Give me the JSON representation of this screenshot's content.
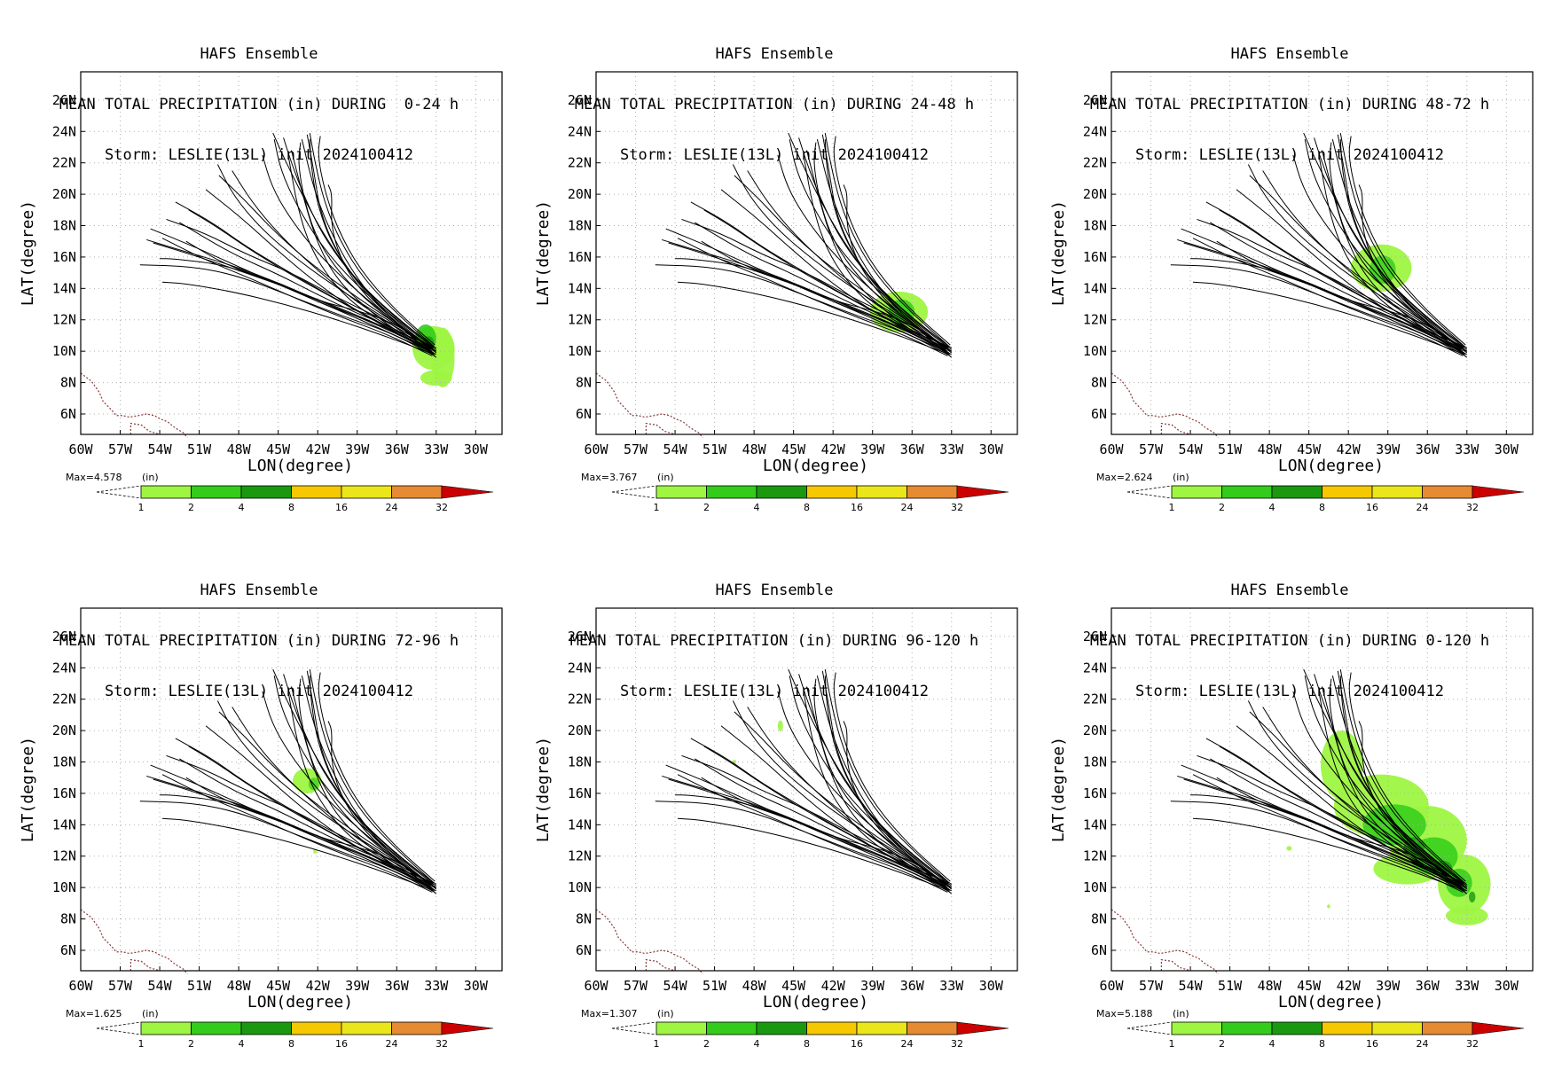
{
  "common": {
    "line1": "HAFS Ensemble",
    "line3": "Storm: LESLIE(13L) init 2024100412",
    "xlabel": "LON(degree)",
    "ylabel": "LAT(degree)",
    "lon_ticks": [
      "60W",
      "57W",
      "54W",
      "51W",
      "48W",
      "45W",
      "42W",
      "39W",
      "36W",
      "33W",
      "30W"
    ],
    "lat_ticks": [
      "26N",
      "24N",
      "22N",
      "20N",
      "18N",
      "16N",
      "14N",
      "12N",
      "10N",
      "8N",
      "6N"
    ],
    "units": "(in)",
    "colorbar": {
      "labels": [
        "1",
        "2",
        "4",
        "8",
        "16",
        "24",
        "32"
      ],
      "colors": [
        "#9ef542",
        "#33cc1a",
        "#1a9910",
        "#f5c800",
        "#ebe61a",
        "#e68a33",
        "#cc0000"
      ]
    },
    "tracks_color": "#000000",
    "coast_color": "#8b3a3a"
  },
  "panels": [
    {
      "line2": "MEAN TOTAL PRECIPITATION (in) DURING  0-24 h",
      "max_label": "Max=4.578"
    },
    {
      "line2": "MEAN TOTAL PRECIPITATION (in) DURING 24-48 h",
      "max_label": "Max=3.767"
    },
    {
      "line2": "MEAN TOTAL PRECIPITATION (in) DURING 48-72 h",
      "max_label": "Max=2.624"
    },
    {
      "line2": "MEAN TOTAL PRECIPITATION (in) DURING 72-96 h",
      "max_label": "Max=1.625"
    },
    {
      "line2": "MEAN TOTAL PRECIPITATION (in) DURING 96-120 h",
      "max_label": "Max=1.307"
    },
    {
      "line2": "MEAN TOTAL PRECIPITATION (in) DURING 0-120 h",
      "max_label": "Max=5.188"
    }
  ]
}
